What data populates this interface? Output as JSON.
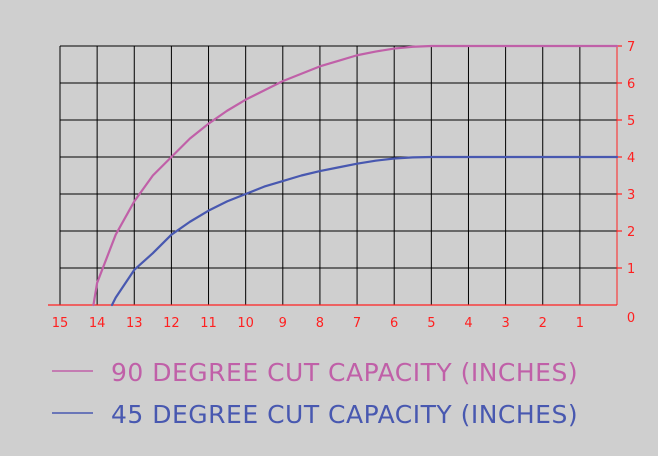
{
  "chart_data": {
    "type": "line",
    "title": "",
    "xlabel": "",
    "ylabel": "",
    "x_reversed": true,
    "xlim": [
      15,
      0
    ],
    "ylim": [
      0,
      7
    ],
    "x_ticks": [
      "15",
      "14",
      "13",
      "12",
      "11",
      "10",
      "9",
      "8",
      "7",
      "6",
      "5",
      "4",
      "3",
      "2",
      "1",
      "0"
    ],
    "y_ticks": [
      "1",
      "2",
      "3",
      "4",
      "5",
      "6",
      "7"
    ],
    "grid": true,
    "legend_position": "bottom",
    "colors": {
      "background": "#cfcfcf",
      "grid": "#000000",
      "axis": "#ff2020",
      "tick_text": "#ff2020"
    },
    "series": [
      {
        "name": "90 DEGREE CUT CAPACITY (INCHES)",
        "color": "#c060a8",
        "x": [
          14.1,
          14.0,
          13.5,
          13.0,
          12.5,
          12.0,
          11.5,
          11.0,
          10.5,
          10.0,
          9.5,
          9.0,
          8.5,
          8.0,
          7.5,
          7.0,
          6.5,
          6.0,
          5.5,
          5.0,
          4.0,
          3.0,
          2.0,
          1.0,
          0.0
        ],
        "values": [
          0,
          0.6,
          1.9,
          2.8,
          3.5,
          4.0,
          4.5,
          4.9,
          5.25,
          5.55,
          5.8,
          6.05,
          6.25,
          6.45,
          6.6,
          6.75,
          6.85,
          6.93,
          6.98,
          7.0,
          7.0,
          7.0,
          7.0,
          7.0,
          7.0
        ]
      },
      {
        "name": "45 DEGREE CUT CAPACITY (INCHES)",
        "color": "#4858b0",
        "x": [
          13.6,
          13.5,
          13.0,
          12.5,
          12.0,
          11.5,
          11.0,
          10.5,
          10.0,
          9.5,
          9.0,
          8.5,
          8.0,
          7.5,
          7.0,
          6.5,
          6.0,
          5.5,
          5.0,
          4.0,
          3.0,
          2.0,
          1.0,
          0.0
        ],
        "values": [
          0,
          0.2,
          0.95,
          1.4,
          1.9,
          2.25,
          2.55,
          2.8,
          3.0,
          3.2,
          3.35,
          3.5,
          3.62,
          3.72,
          3.82,
          3.9,
          3.96,
          3.99,
          4.0,
          4.0,
          4.0,
          4.0,
          4.0,
          4.0
        ]
      }
    ]
  }
}
